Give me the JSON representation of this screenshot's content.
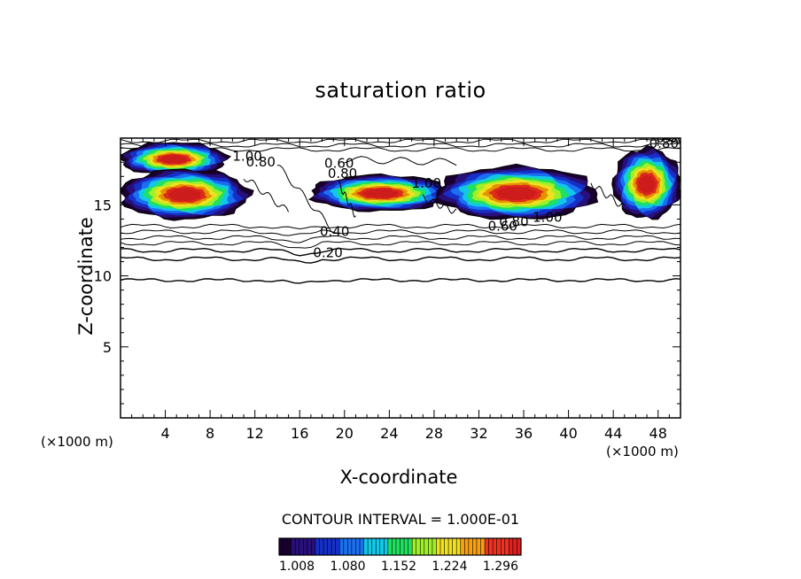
{
  "chart_data": {
    "type": "heatmap",
    "title": "saturation ratio",
    "xlabel": "X-coordinate",
    "ylabel": "Z-coordinate",
    "x_unit_label": "(×1000 m)",
    "x_unit_label_right": "(×1000 m)",
    "xlim": [
      0,
      50
    ],
    "ylim": [
      0,
      19.7
    ],
    "xticks": [
      4,
      8,
      12,
      16,
      20,
      24,
      28,
      32,
      36,
      40,
      44,
      48
    ],
    "yticks": [
      5,
      10,
      15
    ],
    "contour_interval_text": "CONTOUR INTERVAL = 1.000E-01",
    "colorbar": {
      "tick_labels": [
        "1.008",
        "1.080",
        "1.152",
        "1.224",
        "1.296"
      ],
      "min": 1.008,
      "max": 1.35
    },
    "contour_line_levels": [
      0.2,
      0.4,
      0.6,
      0.8,
      1.0
    ],
    "contour_labels": [
      {
        "text": "0.20",
        "x": 17.2,
        "z": 11.3
      },
      {
        "text": "0.40",
        "x": 17.8,
        "z": 12.8
      },
      {
        "text": "0.60",
        "x": 32.8,
        "z": 13.2
      },
      {
        "text": "0.80",
        "x": 33.8,
        "z": 13.5
      },
      {
        "text": "1.00",
        "x": 36.8,
        "z": 13.8
      },
      {
        "text": "0.80",
        "x": 18.5,
        "z": 16.9
      },
      {
        "text": "0.60",
        "x": 18.2,
        "z": 17.6
      },
      {
        "text": "1.00",
        "x": 26.0,
        "z": 16.2
      },
      {
        "text": "1.00",
        "x": 10.0,
        "z": 18.1
      },
      {
        "text": "0.80",
        "x": 11.2,
        "z": 17.7
      },
      {
        "text": "0.80",
        "x": 47.2,
        "z": 19.0
      },
      {
        "text": "0.60",
        "x": 47.8,
        "z": 19.4
      }
    ],
    "supersaturated_regions": [
      {
        "name": "left top",
        "x": [
          0,
          9.5
        ],
        "z": [
          17.0,
          19.4
        ]
      },
      {
        "name": "left main",
        "x": [
          0,
          11.5
        ],
        "z": [
          13.9,
          17.5
        ]
      },
      {
        "name": "center",
        "x": [
          17.0,
          29.5
        ],
        "z": [
          14.5,
          17.1
        ]
      },
      {
        "name": "right center",
        "x": [
          28.2,
          42.5
        ],
        "z": [
          13.9,
          17.7
        ]
      },
      {
        "name": "right edge",
        "x": [
          44.0,
          50.0
        ],
        "z": [
          13.9,
          19.0
        ]
      }
    ]
  },
  "colors": {
    "background": "#ffffff",
    "axis": "#000000",
    "colormap": [
      "#1a0030",
      "#28107a",
      "#1530c8",
      "#1a70f0",
      "#12c8e8",
      "#20e060",
      "#a0f028",
      "#f0e020",
      "#f8a010",
      "#f03020",
      "#e02020"
    ]
  }
}
